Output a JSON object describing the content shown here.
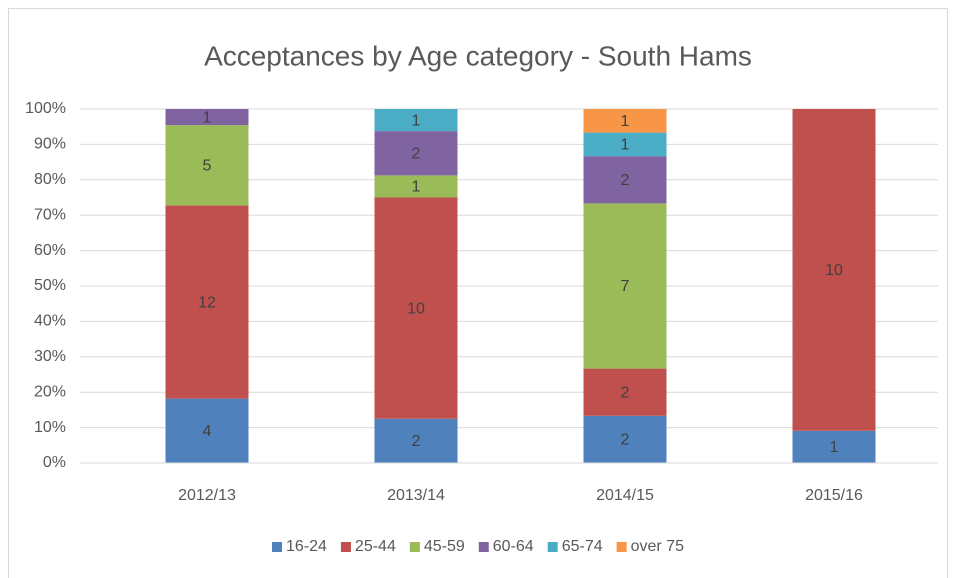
{
  "chart_data": {
    "type": "bar",
    "stacked": "percent",
    "title": "Acceptances by Age category - South Hams",
    "categories": [
      "2012/13",
      "2013/14",
      "2014/15",
      "2015/16"
    ],
    "series": [
      {
        "name": "16-24",
        "color": "#4f81bd",
        "values": [
          4,
          2,
          2,
          1
        ]
      },
      {
        "name": "25-44",
        "color": "#c0504d",
        "values": [
          12,
          10,
          2,
          10
        ]
      },
      {
        "name": "45-59",
        "color": "#9bbb59",
        "values": [
          5,
          1,
          7,
          null
        ]
      },
      {
        "name": "60-64",
        "color": "#8064a2",
        "values": [
          1,
          2,
          2,
          null
        ]
      },
      {
        "name": "65-74",
        "color": "#4bacc6",
        "values": [
          null,
          1,
          1,
          null
        ]
      },
      {
        "name": "over 75",
        "color": "#f79646",
        "values": [
          null,
          null,
          1,
          null
        ]
      }
    ],
    "ylim": [
      0,
      100
    ],
    "yticks": [
      {
        "value": 0,
        "label": "0%"
      },
      {
        "value": 10,
        "label": "10%"
      },
      {
        "value": 20,
        "label": "20%"
      },
      {
        "value": 30,
        "label": "30%"
      },
      {
        "value": 40,
        "label": "40%"
      },
      {
        "value": 50,
        "label": "50%"
      },
      {
        "value": 60,
        "label": "60%"
      },
      {
        "value": 70,
        "label": "70%"
      },
      {
        "value": 80,
        "label": "80%"
      },
      {
        "value": 90,
        "label": "90%"
      },
      {
        "value": 100,
        "label": "100%"
      }
    ],
    "grid": true,
    "legend": "bottom"
  }
}
